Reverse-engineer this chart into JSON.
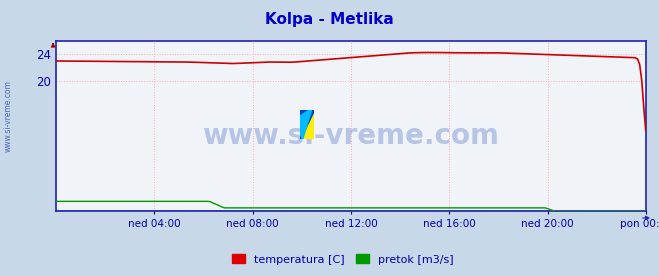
{
  "title": "Kolpa - Metlika",
  "title_color": "#0000cc",
  "background_color": "#c8d8e8",
  "plot_bg_color": "#f0f4f8",
  "grid_color": "#ffaaaa",
  "watermark_text": "www.si-vreme.com",
  "watermark_color": "#3355bb",
  "sidebar_text": "www.si-vreme.com",
  "sidebar_color": "#3355bb",
  "xlabel_color": "#0000aa",
  "ytick_color": "#0000aa",
  "xtick_labels": [
    "ned 04:00",
    "ned 08:00",
    "ned 12:00",
    "ned 16:00",
    "ned 20:00",
    "pon 00:00"
  ],
  "yticks": [
    20,
    24
  ],
  "ylim": [
    0,
    26.0
  ],
  "temp_color": "#cc0000",
  "pretok_color": "#009900",
  "visina_color": "#0000bb",
  "border_color": "#2222aa",
  "legend_temp_color": "#dd0000",
  "legend_pretok_color": "#009900",
  "legend_label_temp": "temperatura [C]",
  "legend_label_pretok": "pretok [m3/s]"
}
